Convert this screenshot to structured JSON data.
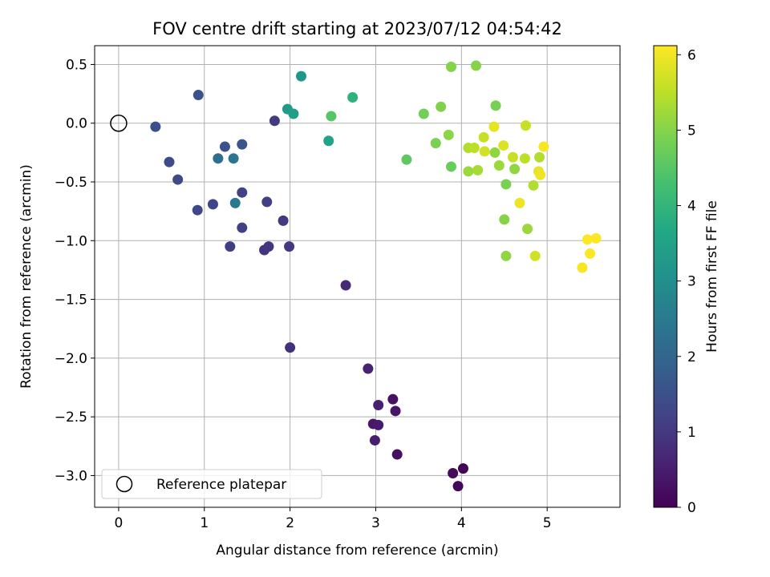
{
  "chart_data": {
    "type": "scatter",
    "title": "FOV centre drift starting at 2023/07/12 04:54:42",
    "xlabel": "Angular distance from reference (arcmin)",
    "ylabel": "Rotation from reference (arcmin)",
    "xlim": [
      -0.28,
      5.85
    ],
    "ylim": [
      -3.27,
      0.66
    ],
    "xticks": [
      0,
      1,
      2,
      3,
      4,
      5
    ],
    "xtick_labels": [
      "0",
      "1",
      "2",
      "3",
      "4",
      "5"
    ],
    "yticks": [
      0.5,
      0.0,
      -0.5,
      -1.0,
      -1.5,
      -2.0,
      -2.5,
      -3.0
    ],
    "ytick_labels": [
      "0.5",
      "0.0",
      "−0.5",
      "−1.0",
      "−1.5",
      "−2.0",
      "−2.5",
      "−3.0"
    ],
    "grid": true,
    "legend": {
      "position": "lower-left",
      "label": "Reference platepar",
      "marker": "open-circle"
    },
    "reference_point": {
      "x": 0,
      "y": 0
    },
    "colormap": "viridis",
    "colorbar": {
      "label": "Hours from first FF file",
      "range": [
        0,
        6.12
      ],
      "ticks": [
        0,
        1,
        2,
        3,
        4,
        5,
        6
      ],
      "tick_labels": [
        "0",
        "1",
        "2",
        "3",
        "4",
        "5",
        "6"
      ]
    },
    "points": [
      {
        "x": 4.02,
        "y": -2.94,
        "h": 0.05
      },
      {
        "x": 3.96,
        "y": -3.09,
        "h": 0.1
      },
      {
        "x": 3.9,
        "y": -2.98,
        "h": 0.15
      },
      {
        "x": 3.25,
        "y": -2.82,
        "h": 0.25
      },
      {
        "x": 3.2,
        "y": -2.35,
        "h": 0.3
      },
      {
        "x": 3.23,
        "y": -2.45,
        "h": 0.35
      },
      {
        "x": 2.97,
        "y": -2.56,
        "h": 0.4
      },
      {
        "x": 3.03,
        "y": -2.57,
        "h": 0.45
      },
      {
        "x": 2.99,
        "y": -2.7,
        "h": 0.5
      },
      {
        "x": 3.03,
        "y": -2.4,
        "h": 0.55
      },
      {
        "x": 2.91,
        "y": -2.09,
        "h": 0.6
      },
      {
        "x": 2.65,
        "y": -1.38,
        "h": 0.7
      },
      {
        "x": 2.0,
        "y": -1.91,
        "h": 0.85
      },
      {
        "x": 1.7,
        "y": -1.08,
        "h": 0.9
      },
      {
        "x": 1.75,
        "y": -1.05,
        "h": 0.95
      },
      {
        "x": 1.92,
        "y": -0.83,
        "h": 1.0
      },
      {
        "x": 1.99,
        "y": -1.05,
        "h": 1.0
      },
      {
        "x": 1.82,
        "y": 0.02,
        "h": 1.05
      },
      {
        "x": 1.3,
        "y": -1.05,
        "h": 1.1
      },
      {
        "x": 1.44,
        "y": -0.89,
        "h": 1.15
      },
      {
        "x": 1.73,
        "y": -0.67,
        "h": 1.15
      },
      {
        "x": 1.44,
        "y": -0.59,
        "h": 1.2
      },
      {
        "x": 1.1,
        "y": -0.69,
        "h": 1.25
      },
      {
        "x": 0.92,
        "y": -0.74,
        "h": 1.3
      },
      {
        "x": 0.69,
        "y": -0.48,
        "h": 1.35
      },
      {
        "x": 0.59,
        "y": -0.33,
        "h": 1.4
      },
      {
        "x": 0.43,
        "y": -0.03,
        "h": 1.45
      },
      {
        "x": 0.93,
        "y": 0.24,
        "h": 1.5
      },
      {
        "x": 1.24,
        "y": -0.2,
        "h": 1.55
      },
      {
        "x": 1.44,
        "y": -0.18,
        "h": 1.6
      },
      {
        "x": 1.16,
        "y": -0.3,
        "h": 2.2
      },
      {
        "x": 1.34,
        "y": -0.3,
        "h": 2.4
      },
      {
        "x": 1.36,
        "y": -0.68,
        "h": 2.5
      },
      {
        "x": 2.13,
        "y": 0.4,
        "h": 3.2
      },
      {
        "x": 1.97,
        "y": 0.12,
        "h": 3.3
      },
      {
        "x": 2.04,
        "y": 0.08,
        "h": 3.4
      },
      {
        "x": 2.45,
        "y": -0.15,
        "h": 3.5
      },
      {
        "x": 2.73,
        "y": 0.22,
        "h": 3.9
      },
      {
        "x": 2.48,
        "y": 0.06,
        "h": 4.5
      },
      {
        "x": 3.36,
        "y": -0.31,
        "h": 4.6
      },
      {
        "x": 3.88,
        "y": -0.37,
        "h": 4.7
      },
      {
        "x": 3.56,
        "y": 0.08,
        "h": 4.8
      },
      {
        "x": 3.7,
        "y": -0.17,
        "h": 4.9
      },
      {
        "x": 3.76,
        "y": 0.14,
        "h": 4.95
      },
      {
        "x": 3.88,
        "y": 0.48,
        "h": 5.0
      },
      {
        "x": 4.17,
        "y": 0.49,
        "h": 5.0
      },
      {
        "x": 3.85,
        "y": -0.1,
        "h": 5.05
      },
      {
        "x": 4.4,
        "y": 0.15,
        "h": 4.85
      },
      {
        "x": 4.52,
        "y": -0.52,
        "h": 4.9
      },
      {
        "x": 4.5,
        "y": -0.82,
        "h": 5.0
      },
      {
        "x": 4.52,
        "y": -1.13,
        "h": 5.1
      },
      {
        "x": 4.77,
        "y": -0.9,
        "h": 5.2
      },
      {
        "x": 4.08,
        "y": -0.41,
        "h": 5.2
      },
      {
        "x": 4.19,
        "y": -0.4,
        "h": 5.3
      },
      {
        "x": 4.39,
        "y": -0.25,
        "h": 5.1
      },
      {
        "x": 4.44,
        "y": -0.36,
        "h": 5.2
      },
      {
        "x": 4.62,
        "y": -0.39,
        "h": 5.1
      },
      {
        "x": 4.08,
        "y": -0.21,
        "h": 5.4
      },
      {
        "x": 4.15,
        "y": -0.21,
        "h": 5.5
      },
      {
        "x": 4.26,
        "y": -0.12,
        "h": 5.6
      },
      {
        "x": 4.27,
        "y": -0.24,
        "h": 5.7
      },
      {
        "x": 4.6,
        "y": -0.29,
        "h": 5.6
      },
      {
        "x": 4.74,
        "y": -0.3,
        "h": 5.5
      },
      {
        "x": 4.75,
        "y": -0.02,
        "h": 5.6
      },
      {
        "x": 4.84,
        "y": -0.53,
        "h": 5.4
      },
      {
        "x": 4.91,
        "y": -0.29,
        "h": 5.4
      },
      {
        "x": 4.86,
        "y": -1.13,
        "h": 5.7
      },
      {
        "x": 4.38,
        "y": -0.03,
        "h": 5.9
      },
      {
        "x": 4.49,
        "y": -0.19,
        "h": 5.8
      },
      {
        "x": 4.68,
        "y": -0.68,
        "h": 5.95
      },
      {
        "x": 4.9,
        "y": -0.41,
        "h": 5.9
      },
      {
        "x": 4.92,
        "y": -0.44,
        "h": 6.0
      },
      {
        "x": 4.96,
        "y": -0.2,
        "h": 6.05
      },
      {
        "x": 5.41,
        "y": -1.23,
        "h": 6.05
      },
      {
        "x": 5.47,
        "y": -0.99,
        "h": 6.1
      },
      {
        "x": 5.5,
        "y": -1.11,
        "h": 6.1
      },
      {
        "x": 5.57,
        "y": -0.98,
        "h": 6.12
      }
    ]
  }
}
